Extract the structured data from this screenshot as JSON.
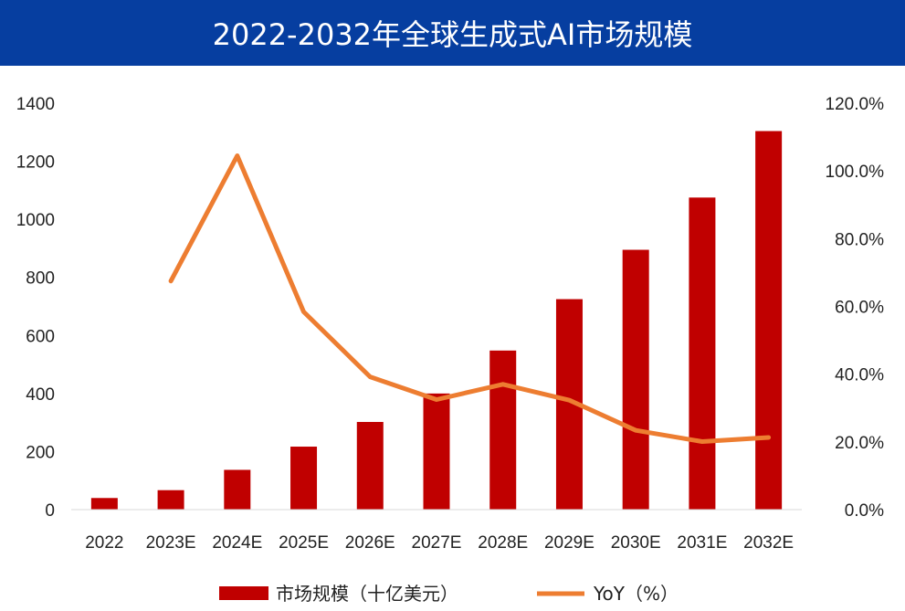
{
  "chart_data": {
    "type": "bar",
    "title": "2022-2032年全球生成式AI市场规模",
    "categories": [
      "2022",
      "2023E",
      "2024E",
      "2025E",
      "2026E",
      "2027E",
      "2028E",
      "2029E",
      "2030E",
      "2031E",
      "2032E"
    ],
    "series": [
      {
        "name": "市场规模（十亿美元）",
        "type": "bar",
        "axis": "left",
        "color": "#c00000",
        "values": [
          40,
          67,
          137,
          217,
          302,
          400,
          548,
          725,
          895,
          1075,
          1304
        ]
      },
      {
        "name": "YoY（%）",
        "type": "line",
        "axis": "right",
        "color": "#ed7d31",
        "values": [
          null,
          67.5,
          104.5,
          58.4,
          39.2,
          32.5,
          37.0,
          32.3,
          23.4,
          20.1,
          21.3
        ]
      }
    ],
    "y_left": {
      "min": 0,
      "max": 1400,
      "ticks": [
        "0",
        "200",
        "400",
        "600",
        "800",
        "1000",
        "1200",
        "1400"
      ]
    },
    "y_right": {
      "min": 0,
      "max": 120,
      "ticks": [
        "0.0%",
        "20.0%",
        "40.0%",
        "60.0%",
        "80.0%",
        "100.0%",
        "120.0%"
      ]
    },
    "grid": false,
    "legend": "bottom"
  }
}
